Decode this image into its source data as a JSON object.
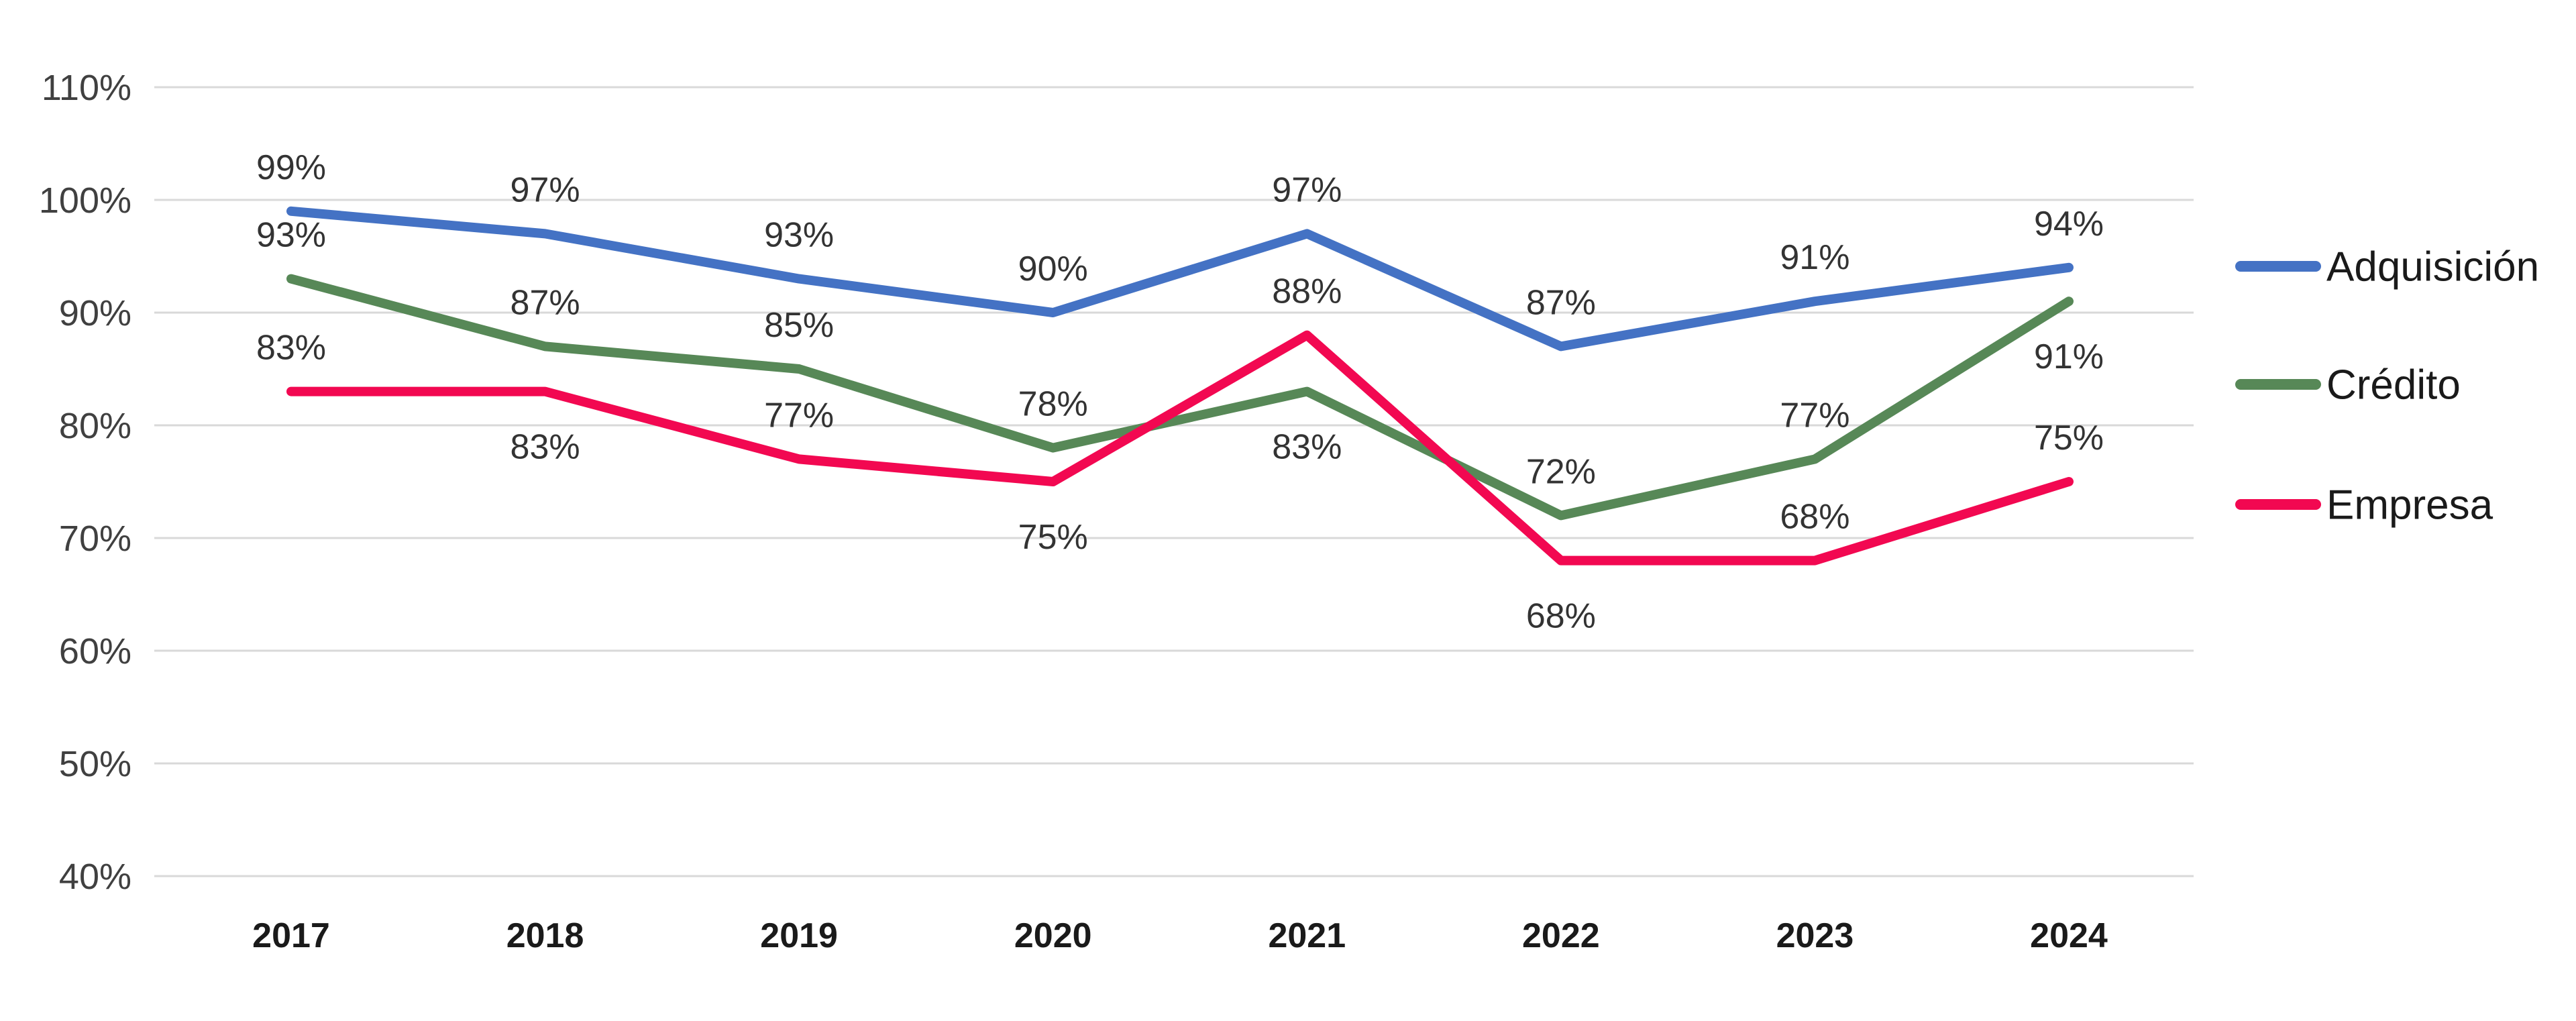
{
  "chart_data": {
    "type": "line",
    "categories": [
      "2017",
      "2018",
      "2019",
      "2020",
      "2021",
      "2022",
      "2023",
      "2024"
    ],
    "series": [
      {
        "name": "Adquisición",
        "color": "#4472C4",
        "values": [
          99,
          97,
          93,
          90,
          97,
          87,
          91,
          94
        ],
        "labels": [
          "99%",
          "97%",
          "93%",
          "90%",
          "97%",
          "87%",
          "91%",
          "94%"
        ],
        "label_positions": [
          "above",
          "above",
          "above",
          "above",
          "above",
          "above",
          "above",
          "above"
        ]
      },
      {
        "name": "Crédito",
        "color": "#578857",
        "values": [
          93,
          87,
          85,
          78,
          83,
          72,
          77,
          91
        ],
        "labels": [
          "93%",
          "87%",
          "85%",
          "78%",
          "83%",
          "72%",
          "77%",
          "91%"
        ],
        "label_positions": [
          "above",
          "above",
          "above",
          "above",
          "below",
          "above",
          "above",
          "below"
        ]
      },
      {
        "name": "Empresa",
        "color": "#F20851",
        "values": [
          83,
          83,
          77,
          75,
          88,
          68,
          68,
          75
        ],
        "labels": [
          "83%",
          "83%",
          "77%",
          "75%",
          "88%",
          "68%",
          "68%",
          "75%"
        ],
        "label_positions": [
          "above",
          "below",
          "above",
          "below",
          "above",
          "below",
          "above",
          "above"
        ]
      }
    ],
    "y_axis": {
      "min": 40,
      "max": 110,
      "step": 10,
      "tick_labels": [
        "110%",
        "100%",
        "90%",
        "80%",
        "70%",
        "60%",
        "50%",
        "40%"
      ]
    },
    "x_axis": {
      "tick_labels": [
        "2017",
        "2018",
        "2019",
        "2020",
        "2021",
        "2022",
        "2023",
        "2024"
      ]
    },
    "title": "",
    "xlabel": "",
    "ylabel": "",
    "ylim": [
      40,
      110
    ],
    "grid": true,
    "data_label_format": "percent",
    "legend": {
      "position": "right",
      "entries": [
        "Adquisición",
        "Crédito",
        "Empresa"
      ]
    },
    "colors": {
      "gridline": "#D9D9D9",
      "axis_tick_text": "#404040",
      "year_text": "#1A1A1A",
      "data_label_text": "#333333",
      "legend_text": "#1A1A1A",
      "background": "#FFFFFF"
    }
  }
}
